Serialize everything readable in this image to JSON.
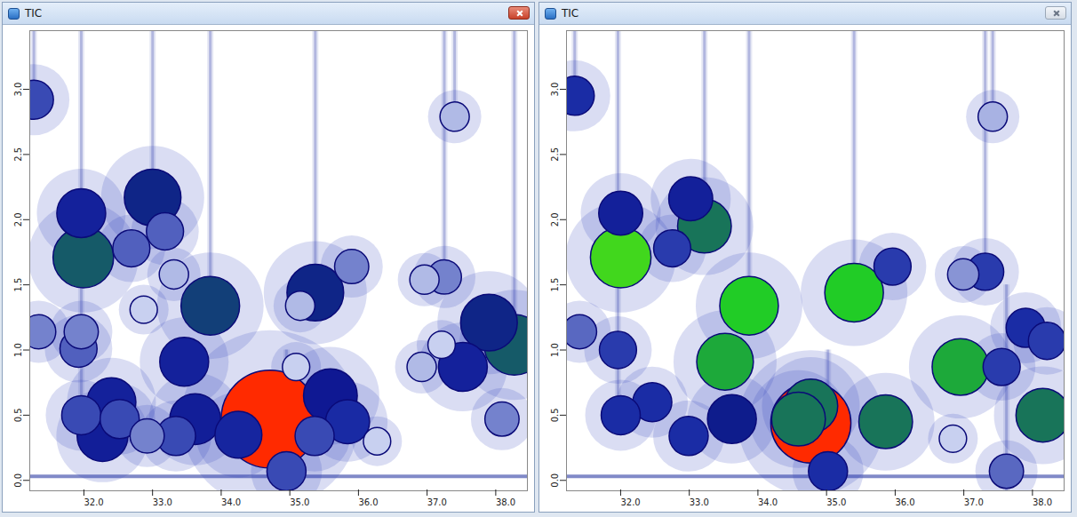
{
  "chart_data": [
    {
      "type": "scatter",
      "title": "TIC",
      "xlim": [
        31.25,
        38.5
      ],
      "ylim": [
        -0.08,
        3.45
      ],
      "xticks": [
        {
          "value": 32,
          "label": "32.0"
        },
        {
          "value": 33,
          "label": "33.0"
        },
        {
          "value": 34,
          "label": "34.0"
        },
        {
          "value": 35,
          "label": "35.0"
        },
        {
          "value": 36,
          "label": "36.0"
        },
        {
          "value": 37,
          "label": "37.0"
        },
        {
          "value": 38,
          "label": "38.0"
        }
      ],
      "yticks": [
        {
          "value": 0,
          "label": "0.0"
        },
        {
          "value": 0.5,
          "label": "0.5"
        },
        {
          "value": 1,
          "label": "1.0"
        },
        {
          "value": 1.5,
          "label": "1.5"
        },
        {
          "value": 2,
          "label": "2.0"
        },
        {
          "value": 2.5,
          "label": "2.5"
        },
        {
          "value": 3,
          "label": "3.0"
        }
      ],
      "grid": false,
      "peaks": {
        "x": [
          31.31,
          32.0,
          32.03,
          33.04,
          33.22,
          32.73,
          33.35,
          33.88,
          35.41,
          35.94,
          35.19,
          32.91,
          31.38,
          32.0,
          31.96,
          33.5,
          37.44,
          37.0,
          37.29,
          37.94,
          38.31,
          37.56,
          37.25,
          36.96,
          35.13,
          32.44,
          32.0,
          32.56,
          33.66,
          34.75,
          35.63,
          35.88,
          35.4,
          32.31,
          32.96,
          33.38,
          34.29,
          36.31,
          38.13,
          34.99
        ],
        "y": [
          2.92,
          2.05,
          1.71,
          2.17,
          1.91,
          1.78,
          1.58,
          1.34,
          1.44,
          1.64,
          1.34,
          1.31,
          1.14,
          1.14,
          1.01,
          0.91,
          2.79,
          1.54,
          1.56,
          1.21,
          1.04,
          0.87,
          1.04,
          0.87,
          0.87,
          0.6,
          0.5,
          0.47,
          0.47,
          0.47,
          0.65,
          0.45,
          0.34,
          0.34,
          0.34,
          0.34,
          0.35,
          0.3,
          0.47,
          0.07
        ],
        "intensity": [
          40,
          50,
          62,
          58,
          38,
          38,
          30,
          60,
          58,
          35,
          30,
          28,
          35,
          35,
          38,
          50,
          30,
          30,
          35,
          58,
          62,
          50,
          28,
          30,
          28,
          50,
          40,
          40,
          52,
          100,
          55,
          45,
          40,
          52,
          35,
          40,
          48,
          28,
          35,
          40
        ]
      },
      "streaks": {
        "x": [
          32.0,
          31.31,
          33.04,
          33.88,
          35.41,
          34.99,
          37.44,
          37.29,
          38.31
        ],
        "y0": [
          0.4,
          2.9,
          2.1,
          1.3,
          1.4,
          -0.08,
          2.8,
          1.5,
          1.0
        ],
        "y1": [
          3.45,
          3.45,
          3.45,
          3.45,
          3.45,
          1.0,
          3.45,
          3.45,
          3.45
        ]
      },
      "baseline_y": 0.03
    },
    {
      "type": "scatter",
      "title": "TIC",
      "xlim": [
        31.25,
        38.5
      ],
      "ylim": [
        -0.08,
        3.45
      ],
      "xticks": [
        {
          "value": 32,
          "label": "32.0"
        },
        {
          "value": 33,
          "label": "33.0"
        },
        {
          "value": 34,
          "label": "34.0"
        },
        {
          "value": 35,
          "label": "35.0"
        },
        {
          "value": 36,
          "label": "36.0"
        },
        {
          "value": 37,
          "label": "37.0"
        },
        {
          "value": 38,
          "label": "38.0"
        }
      ],
      "yticks": [
        {
          "value": 0,
          "label": "0.0"
        },
        {
          "value": 0.5,
          "label": "0.5"
        },
        {
          "value": 1,
          "label": "1.0"
        },
        {
          "value": 1.5,
          "label": "1.5"
        },
        {
          "value": 2,
          "label": "2.0"
        },
        {
          "value": 2.5,
          "label": "2.5"
        },
        {
          "value": 3,
          "label": "3.0"
        }
      ],
      "grid": false,
      "peaks": {
        "x": [
          31.37,
          32.04,
          32.04,
          33.06,
          33.26,
          32.79,
          33.91,
          35.44,
          36.0,
          37.35,
          37.03,
          37.46,
          37.94,
          38.25,
          36.99,
          37.59,
          33.56,
          31.44,
          32.0,
          34.81,
          34.81,
          34.63,
          35.9,
          33.03,
          33.66,
          32.5,
          32.04,
          36.88,
          38.19,
          35.06,
          37.66
        ],
        "y": [
          2.95,
          1.71,
          2.05,
          2.16,
          1.95,
          1.78,
          1.34,
          1.44,
          1.64,
          1.6,
          1.58,
          2.79,
          1.17,
          1.07,
          0.87,
          0.87,
          0.91,
          1.14,
          1.0,
          0.57,
          0.44,
          0.47,
          0.45,
          0.34,
          0.47,
          0.6,
          0.5,
          0.32,
          0.5,
          0.07,
          0.07
        ],
        "intensity": [
          40,
          62,
          45,
          45,
          55,
          38,
          60,
          60,
          38,
          38,
          32,
          30,
          40,
          38,
          58,
          38,
          58,
          35,
          38,
          55,
          82,
          55,
          55,
          40,
          50,
          40,
          40,
          28,
          55,
          40,
          35
        ]
      },
      "streaks": {
        "x": [
          32.0,
          31.37,
          33.26,
          33.91,
          35.44,
          35.06,
          37.35,
          37.66,
          37.46
        ],
        "y0": [
          0.4,
          2.9,
          1.9,
          1.3,
          1.4,
          -0.08,
          1.55,
          -0.08,
          2.8
        ],
        "y1": [
          3.45,
          3.45,
          3.45,
          3.45,
          3.45,
          1.0,
          3.45,
          1.5,
          3.45
        ]
      },
      "baseline_y": 0.03
    }
  ]
}
